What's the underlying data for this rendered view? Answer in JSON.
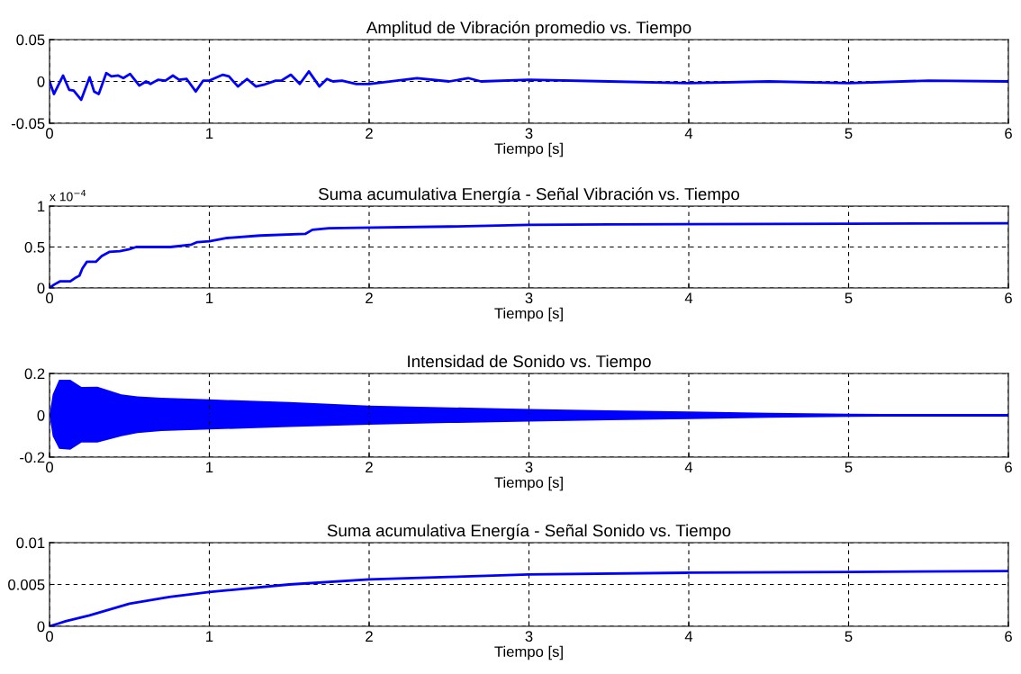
{
  "chart_data": [
    {
      "type": "line",
      "title": "Amplitud de Vibración promedio vs. Tiempo",
      "xlabel": "Tiempo [s]",
      "xlim": [
        0,
        6
      ],
      "xticks": [
        0,
        1,
        2,
        3,
        4,
        5,
        6
      ],
      "ylim": [
        -0.05,
        0.05
      ],
      "yticks": [
        -0.05,
        0,
        0.05
      ],
      "grid": true,
      "series": [
        {
          "color": "#0000ff",
          "x": [
            0,
            0.028,
            0.085,
            0.123,
            0.151,
            0.198,
            0.251,
            0.279,
            0.308,
            0.355,
            0.387,
            0.43,
            0.462,
            0.504,
            0.562,
            0.604,
            0.632,
            0.679,
            0.725,
            0.772,
            0.811,
            0.858,
            0.915,
            0.962,
            1.0,
            1.085,
            1.123,
            1.179,
            1.236,
            1.292,
            1.34,
            1.415,
            1.45,
            1.51,
            1.566,
            1.623,
            1.689,
            1.736,
            1.774,
            1.83,
            1.92,
            2.0,
            2.3,
            2.5,
            2.62,
            2.7,
            3.0,
            3.5,
            4.0,
            4.5,
            5.0,
            5.5,
            6.0
          ],
          "values": [
            0,
            -0.015,
            0.007,
            -0.01,
            -0.011,
            -0.022,
            0.005,
            -0.012,
            -0.015,
            0.01,
            0.006,
            0.007,
            0.004,
            0.009,
            -0.005,
            0,
            -0.003,
            0.002,
            0.001,
            0.007,
            0.002,
            0.003,
            -0.012,
            0.001,
            0.001,
            0.008,
            0.006,
            -0.006,
            0.003,
            -0.006,
            -0.004,
            0.001,
            0.001,
            0.008,
            -0.003,
            0.012,
            -0.006,
            0.003,
            0,
            0.001,
            -0.003,
            -0.003,
            0.004,
            0,
            0.004,
            0,
            0.002,
            0,
            -0.002,
            0,
            -0.002,
            0.001,
            0
          ]
        }
      ]
    },
    {
      "type": "line",
      "title": "Suma acumulativa Energía - Señal Vibración vs. Tiempo",
      "xlabel": "Tiempo [s]",
      "xlim": [
        0,
        6
      ],
      "xticks": [
        0,
        1,
        2,
        3,
        4,
        5,
        6
      ],
      "ylim": [
        0,
        1
      ],
      "yticks": [
        0,
        0.5,
        1
      ],
      "grid": true,
      "annotations": [
        "x 10$^{−4}$"
      ],
      "series": [
        {
          "color": "#0000ff",
          "x": [
            0,
            0.028,
            0.065,
            0.13,
            0.159,
            0.187,
            0.206,
            0.234,
            0.29,
            0.327,
            0.374,
            0.44,
            0.495,
            0.542,
            0.757,
            0.888,
            0.925,
            1.0,
            1.112,
            1.318,
            1.6,
            1.645,
            1.748,
            1.93,
            2.5,
            3.0,
            3.5,
            4.0,
            5.0,
            6.0
          ],
          "values": [
            0,
            0.04,
            0.08,
            0.08,
            0.12,
            0.15,
            0.24,
            0.32,
            0.32,
            0.39,
            0.44,
            0.45,
            0.47,
            0.5,
            0.5,
            0.53,
            0.56,
            0.57,
            0.61,
            0.64,
            0.66,
            0.71,
            0.73,
            0.735,
            0.75,
            0.77,
            0.775,
            0.78,
            0.785,
            0.79
          ]
        }
      ]
    },
    {
      "type": "line",
      "title": "Intensidad de Sonido vs. Tiempo",
      "xlabel": "Tiempo [s]",
      "xlim": [
        0,
        6
      ],
      "xticks": [
        0,
        1,
        2,
        3,
        4,
        5,
        6
      ],
      "ylim": [
        -0.2,
        0.2
      ],
      "yticks": [
        -0.2,
        0,
        0.2
      ],
      "grid": true,
      "series": [
        {
          "color": "#0000ff",
          "x": [
            0,
            0.02,
            0.06,
            0.13,
            0.2,
            0.3,
            0.45,
            0.55,
            0.7,
            1.0,
            1.5,
            2.0,
            2.5,
            3.0,
            3.5,
            4.0,
            4.5,
            5.0,
            5.5,
            6.0
          ],
          "values": [
            0,
            0,
            0,
            0,
            0,
            0,
            0,
            0,
            0,
            0,
            0,
            0,
            0,
            0,
            0,
            0,
            0,
            0,
            0,
            0
          ],
          "upper": [
            0,
            0.1,
            0.17,
            0.17,
            0.135,
            0.137,
            0.1,
            0.09,
            0.084,
            0.076,
            0.063,
            0.046,
            0.038,
            0.03,
            0.024,
            0.018,
            0.012,
            0.008,
            0.005,
            0.001
          ],
          "lower": [
            0,
            -0.1,
            -0.16,
            -0.164,
            -0.13,
            -0.13,
            -0.1,
            -0.085,
            -0.075,
            -0.068,
            -0.056,
            -0.045,
            -0.037,
            -0.03,
            -0.024,
            -0.018,
            -0.012,
            -0.008,
            -0.005,
            -0.001
          ]
        }
      ]
    },
    {
      "type": "line",
      "title": "Suma acumulativa Energía - Señal Sonido vs. Tiempo",
      "xlabel": "Tiempo [s]",
      "xlim": [
        0,
        6
      ],
      "xticks": [
        0,
        1,
        2,
        3,
        4,
        5,
        6
      ],
      "ylim": [
        0,
        0.01
      ],
      "yticks": [
        0,
        0.005,
        0.01
      ],
      "grid": true,
      "series": [
        {
          "color": "#0000ff",
          "x": [
            0,
            0.05,
            0.1,
            0.25,
            0.5,
            0.75,
            1.0,
            1.5,
            2.0,
            2.5,
            3.0,
            4.0,
            5.0,
            6.0
          ],
          "values": [
            0,
            0.0003,
            0.0006,
            0.0013,
            0.0027,
            0.0035,
            0.0041,
            0.005,
            0.0056,
            0.0059,
            0.0062,
            0.0064,
            0.0065,
            0.0066
          ]
        }
      ]
    }
  ]
}
